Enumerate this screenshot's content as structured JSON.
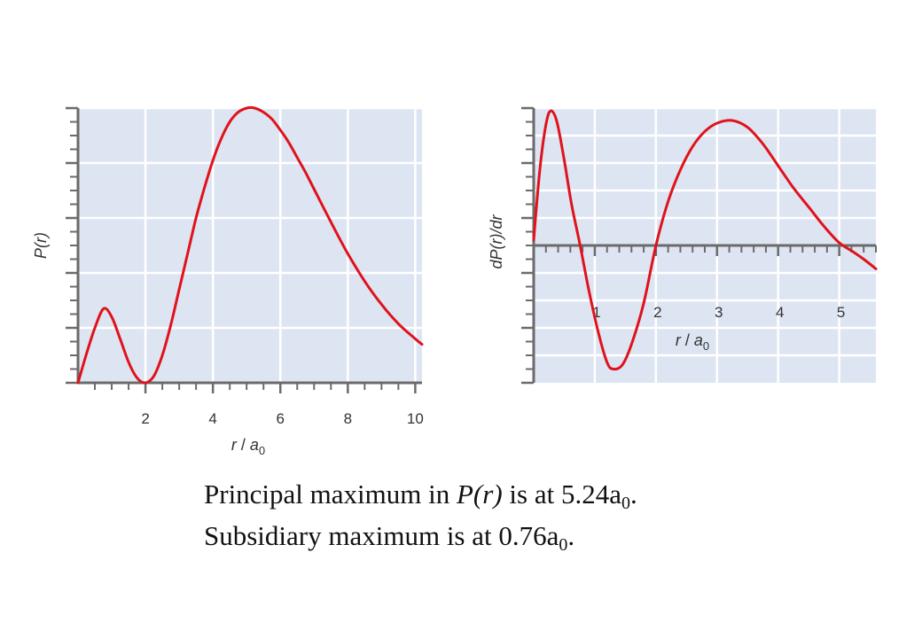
{
  "colors": {
    "plot_background": "#dde5f3",
    "grid": "#ffffff",
    "curve": "#e0121b",
    "axis": "#6b6b6b"
  },
  "chart_data": [
    {
      "type": "line",
      "ylabel": "P(r)",
      "xlabel_main": "r",
      "xlabel_sep": " / ",
      "xlabel_sym": "a",
      "xlabel_sub": "0",
      "xlim": [
        0,
        10.2
      ],
      "ylim": [
        0,
        1.0
      ],
      "x_ticks": [
        2,
        4,
        6,
        8,
        10
      ],
      "x_tick_labels": [
        "2",
        "4",
        "6",
        "8",
        "10"
      ],
      "grid": true,
      "y_tick_labels_shown": false,
      "series": [
        {
          "x": [
            0,
            0.25,
            0.5,
            0.76,
            1.0,
            1.25,
            1.5,
            1.75,
            2.0,
            2.25,
            2.5,
            2.75,
            3.0,
            3.25,
            3.5,
            3.75,
            4.0,
            4.25,
            4.5,
            4.75,
            5.0,
            5.24,
            5.5,
            5.75,
            6.0,
            6.25,
            6.5,
            6.75,
            7.0,
            7.5,
            8.0,
            8.5,
            9.0,
            9.5,
            10.0,
            10.2
          ],
          "y": [
            0,
            0.105,
            0.2,
            0.27,
            0.24,
            0.16,
            0.075,
            0.018,
            0,
            0.025,
            0.1,
            0.21,
            0.34,
            0.47,
            0.6,
            0.71,
            0.81,
            0.89,
            0.95,
            0.985,
            1.0,
            1.0,
            0.985,
            0.96,
            0.92,
            0.875,
            0.82,
            0.765,
            0.705,
            0.585,
            0.47,
            0.37,
            0.285,
            0.215,
            0.16,
            0.14
          ]
        }
      ]
    },
    {
      "type": "line",
      "ylabel": "dP(r)/dr",
      "xlabel_main": "r",
      "xlabel_sep": " / ",
      "xlabel_sym": "a",
      "xlabel_sub": "0",
      "xlim": [
        0,
        5.6
      ],
      "ylim": [
        -1.0,
        1.0
      ],
      "x_ticks": [
        1,
        2,
        3,
        4,
        5
      ],
      "x_tick_labels": [
        "1",
        "2",
        "3",
        "4",
        "5"
      ],
      "grid": true,
      "y_tick_labels_shown": false,
      "series": [
        {
          "x": [
            0,
            0.1,
            0.2,
            0.28,
            0.38,
            0.5,
            0.62,
            0.76,
            0.9,
            1.05,
            1.2,
            1.3,
            1.45,
            1.6,
            1.8,
            2.0,
            2.2,
            2.4,
            2.6,
            2.8,
            3.0,
            3.24,
            3.5,
            3.75,
            4.0,
            4.25,
            4.5,
            4.75,
            5.0,
            5.24,
            5.4,
            5.6
          ],
          "y": [
            0.04,
            0.55,
            0.88,
            0.98,
            0.9,
            0.62,
            0.3,
            0,
            -0.32,
            -0.62,
            -0.85,
            -0.9,
            -0.87,
            -0.72,
            -0.42,
            0,
            0.32,
            0.55,
            0.72,
            0.83,
            0.89,
            0.91,
            0.86,
            0.74,
            0.58,
            0.42,
            0.28,
            0.14,
            0.02,
            -0.05,
            -0.1,
            -0.17
          ]
        }
      ]
    }
  ],
  "caption": {
    "line1_a": "Principal maximum in ",
    "line1_italic": "P(r)",
    "line1_b": " is at 5.24a",
    "line1_sub": "0",
    "line1_end": ".",
    "line2_a": "Subsidiary maximum is at 0.76a",
    "line2_sub": "0",
    "line2_end": "."
  }
}
